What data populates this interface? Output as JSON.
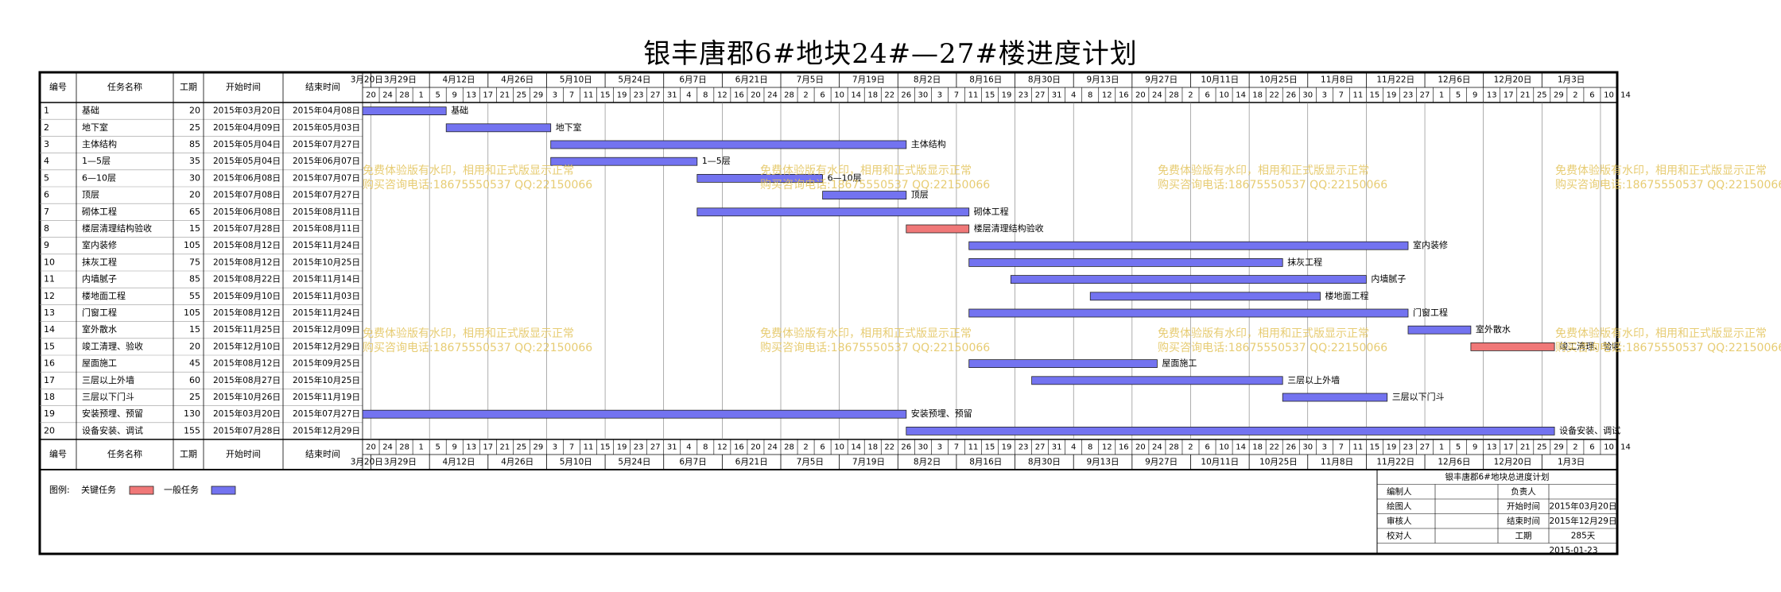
{
  "title": "银丰唐郡6#地块24#—27#楼进度计划",
  "columns": {
    "id": "编号",
    "name": "任务名称",
    "duration": "工期",
    "start": "开始时间",
    "end": "结束时间"
  },
  "chart_data": {
    "type": "gantt",
    "x_start": "2015-03-20",
    "x_end": "2016-01-14",
    "week_labels": [
      "3月20日",
      "3月29日",
      "4月12日",
      "4月26日",
      "5月10日",
      "5月24日",
      "6月7日",
      "6月21日",
      "7月5日",
      "7月19日",
      "8月2日",
      "8月16日",
      "8月30日",
      "9月13日",
      "9月27日",
      "10月11日",
      "10月25日",
      "11月8日",
      "11月22日",
      "12月6日",
      "12月20日",
      "1月3日"
    ],
    "tasks": [
      {
        "id": "1",
        "name": "基础",
        "duration": "20",
        "start": "2015年03月20日",
        "end": "2015年04月08日",
        "critical": false
      },
      {
        "id": "2",
        "name": "地下室",
        "duration": "25",
        "start": "2015年04月09日",
        "end": "2015年05月03日",
        "critical": false
      },
      {
        "id": "3",
        "name": "主体结构",
        "duration": "85",
        "start": "2015年05月04日",
        "end": "2015年07月27日",
        "critical": false
      },
      {
        "id": "4",
        "name": "1—5层",
        "duration": "35",
        "start": "2015年05月04日",
        "end": "2015年06月07日",
        "critical": false
      },
      {
        "id": "5",
        "name": "6—10层",
        "duration": "30",
        "start": "2015年06月08日",
        "end": "2015年07月07日",
        "critical": false
      },
      {
        "id": "6",
        "name": "顶层",
        "duration": "20",
        "start": "2015年07月08日",
        "end": "2015年07月27日",
        "critical": false
      },
      {
        "id": "7",
        "name": "砌体工程",
        "duration": "65",
        "start": "2015年06月08日",
        "end": "2015年08月11日",
        "critical": false
      },
      {
        "id": "8",
        "name": "楼层清理结构验收",
        "duration": "15",
        "start": "2015年07月28日",
        "end": "2015年08月11日",
        "critical": true
      },
      {
        "id": "9",
        "name": "室内装修",
        "duration": "105",
        "start": "2015年08月12日",
        "end": "2015年11月24日",
        "critical": false
      },
      {
        "id": "10",
        "name": "抹灰工程",
        "duration": "75",
        "start": "2015年08月12日",
        "end": "2015年10月25日",
        "critical": false
      },
      {
        "id": "11",
        "name": "内墙腻子",
        "duration": "85",
        "start": "2015年08月22日",
        "end": "2015年11月14日",
        "critical": false
      },
      {
        "id": "12",
        "name": "楼地面工程",
        "duration": "55",
        "start": "2015年09月10日",
        "end": "2015年11月03日",
        "critical": false
      },
      {
        "id": "13",
        "name": "门窗工程",
        "duration": "105",
        "start": "2015年08月12日",
        "end": "2015年11月24日",
        "critical": false
      },
      {
        "id": "14",
        "name": "室外散水",
        "duration": "15",
        "start": "2015年11月25日",
        "end": "2015年12月09日",
        "critical": false
      },
      {
        "id": "15",
        "name": "竣工清理、验收",
        "duration": "20",
        "start": "2015年12月10日",
        "end": "2015年12月29日",
        "critical": true
      },
      {
        "id": "16",
        "name": "屋面施工",
        "duration": "45",
        "start": "2015年08月12日",
        "end": "2015年09月25日",
        "critical": false
      },
      {
        "id": "17",
        "name": "三层以上外墙",
        "duration": "60",
        "start": "2015年08月27日",
        "end": "2015年10月25日",
        "critical": false
      },
      {
        "id": "18",
        "name": "三层以下门斗",
        "duration": "25",
        "start": "2015年10月26日",
        "end": "2015年11月19日",
        "critical": false
      },
      {
        "id": "19",
        "name": "安装预埋、预留",
        "duration": "130",
        "start": "2015年03月20日",
        "end": "2015年07月27日",
        "critical": false
      },
      {
        "id": "20",
        "name": "设备安装、调试",
        "duration": "155",
        "start": "2015年07月28日",
        "end": "2015年12月29日",
        "critical": false
      }
    ]
  },
  "legend": {
    "label": "图例:",
    "critical": "关键任务",
    "normal": "一般任务"
  },
  "colors": {
    "critical": "#f07878",
    "normal": "#7373f0",
    "grid": "#000000",
    "watermark": "#e3c35a"
  },
  "watermark": {
    "line1": "免费体验版有水印，相用和正式版显示正常",
    "line2": "购买咨询电话:18675550537 QQ:22150066"
  },
  "info": {
    "title": "银丰唐郡6#地块总进度计划",
    "editor_label": "编制人",
    "owner_label": "负责人",
    "drawer_label": "绘图人",
    "start_label": "开始时间",
    "start_value": "2015年03月20日",
    "reviewer_label": "审核人",
    "end_label": "结束时间",
    "end_value": "2015年12月29日",
    "checker_label": "校对人",
    "duration_label": "工期",
    "duration_value": "285天",
    "date": "2015-01-23"
  }
}
